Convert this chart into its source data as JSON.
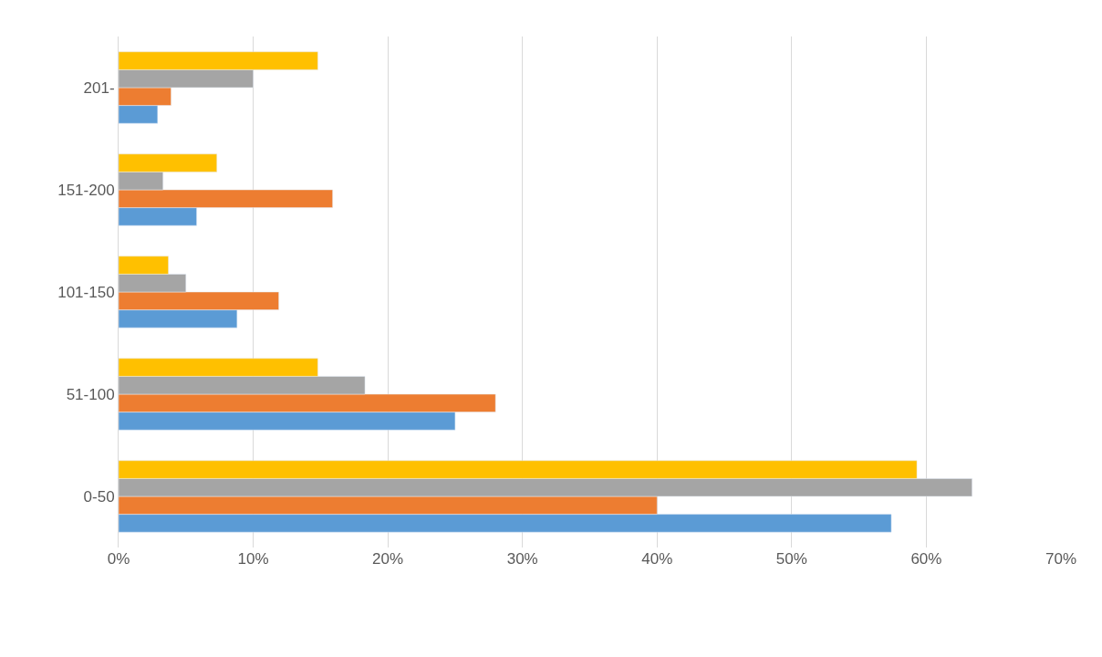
{
  "chart_data": {
    "type": "bar",
    "orientation": "horizontal",
    "categories": [
      "201-",
      "151-200",
      "101-150",
      "51-100",
      "0-50"
    ],
    "series": [
      {
        "color": "#5b9bd5",
        "values": [
          2.9,
          5.8,
          8.8,
          25.0,
          57.4
        ]
      },
      {
        "color": "#ed7d31",
        "values": [
          3.9,
          15.9,
          11.9,
          28.0,
          40.0
        ]
      },
      {
        "color": "#a5a5a5",
        "values": [
          10.0,
          3.3,
          5.0,
          18.3,
          63.4
        ]
      },
      {
        "color": "#ffc000",
        "values": [
          14.8,
          7.3,
          3.7,
          14.8,
          59.3
        ]
      }
    ],
    "xlim": [
      0,
      70
    ],
    "xticks": [
      {
        "value": 0,
        "label": "0%"
      },
      {
        "value": 10,
        "label": "10%"
      },
      {
        "value": 20,
        "label": "20%"
      },
      {
        "value": 30,
        "label": "30%"
      },
      {
        "value": 40,
        "label": "40%"
      },
      {
        "value": 50,
        "label": "50%"
      },
      {
        "value": 60,
        "label": "60%"
      },
      {
        "value": 70,
        "label": "70%"
      }
    ],
    "grid": "x"
  }
}
